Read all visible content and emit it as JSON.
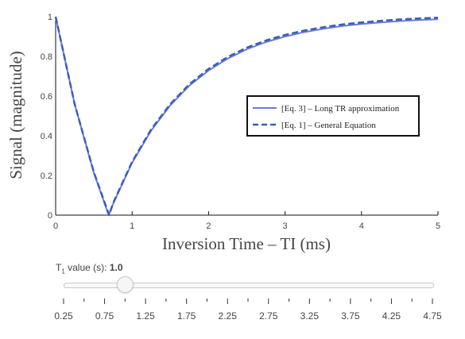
{
  "chart_data": {
    "type": "line",
    "title": "",
    "xlabel": "Inversion Time – TI (ms)",
    "ylabel": "Signal (magnitude)",
    "xlim": [
      0,
      5
    ],
    "ylim": [
      0,
      1
    ],
    "x_ticks": [
      "0",
      "1",
      "2",
      "3",
      "4",
      "5"
    ],
    "y_ticks": [
      "0",
      "0.2",
      "0.4",
      "0.6",
      "0.8",
      "1"
    ],
    "grid": false,
    "legend_position": "right",
    "series": [
      {
        "name": "[Eq. 3] – Long TR approximation",
        "style": "solid",
        "color": "#6b7ae0",
        "x": [
          0,
          0.25,
          0.5,
          0.693,
          0.75,
          1,
          1.25,
          1.5,
          1.75,
          2,
          2.25,
          2.5,
          2.75,
          3,
          3.25,
          3.5,
          3.75,
          4,
          4.25,
          4.5,
          4.75,
          5
        ],
        "y": [
          1,
          0.558,
          0.213,
          0,
          0.055,
          0.264,
          0.427,
          0.554,
          0.653,
          0.729,
          0.789,
          0.836,
          0.872,
          0.9,
          0.922,
          0.939,
          0.953,
          0.963,
          0.971,
          0.978,
          0.983,
          0.987
        ]
      },
      {
        "name": "[Eq. 1] – General Equation",
        "style": "dash",
        "color": "#3a5fb0",
        "x": [
          0,
          0.25,
          0.5,
          0.7,
          0.75,
          1,
          1.25,
          1.5,
          1.75,
          2,
          2.25,
          2.5,
          2.75,
          3,
          3.25,
          3.5,
          3.75,
          4,
          4.25,
          4.5,
          4.75,
          5
        ],
        "y": [
          1,
          0.558,
          0.216,
          0,
          0.059,
          0.269,
          0.433,
          0.56,
          0.66,
          0.737,
          0.797,
          0.844,
          0.88,
          0.908,
          0.93,
          0.947,
          0.961,
          0.971,
          0.979,
          0.986,
          0.991,
          0.995
        ]
      }
    ]
  },
  "slider": {
    "label_prefix": "T",
    "label_sub": "1",
    "label_suffix": " value (s): ",
    "current_value": "1.0",
    "value": 1.0,
    "min": 0.25,
    "max": 4.75,
    "tick_labels": [
      "0.25",
      "0.75",
      "1.25",
      "1.75",
      "2.25",
      "2.75",
      "3.25",
      "3.75",
      "4.25",
      "4.75"
    ]
  }
}
